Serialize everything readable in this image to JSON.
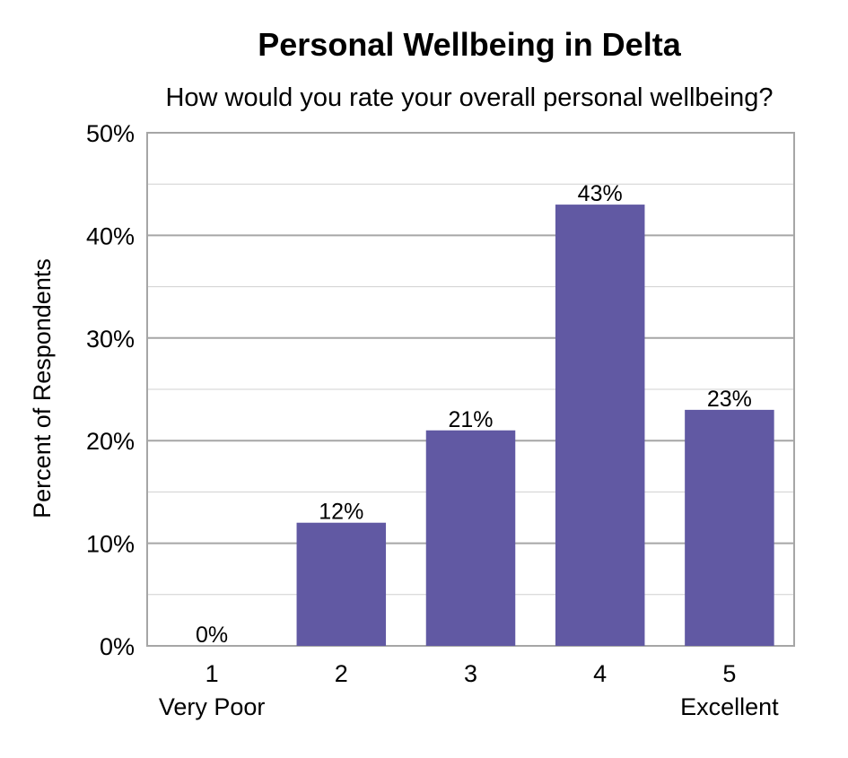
{
  "chart_data": {
    "type": "bar",
    "title": "Personal Wellbeing in Delta",
    "subtitle": "How would you rate your overall personal wellbeing?",
    "xlabel": "",
    "ylabel": "Percent of Respondents",
    "categories": [
      "1",
      "2",
      "3",
      "4",
      "5"
    ],
    "category_sublabels": [
      "Very Poor",
      "",
      "",
      "",
      "Excellent"
    ],
    "values": [
      0,
      12,
      21,
      43,
      23
    ],
    "data_labels": [
      "0%",
      "12%",
      "21%",
      "43%",
      "23%"
    ],
    "ylim": [
      0,
      50
    ],
    "yticks": [
      0,
      10,
      20,
      30,
      40,
      50
    ],
    "ytick_labels": [
      "0%",
      "10%",
      "20%",
      "30%",
      "40%",
      "50%"
    ],
    "grid": true,
    "legend": "none",
    "colors": {
      "bar": "#6159A3",
      "major_grid": "#A6A6A6",
      "minor_grid": "#D0D0D0",
      "plot_border": "#A6A6A6",
      "text": "#000000"
    }
  }
}
